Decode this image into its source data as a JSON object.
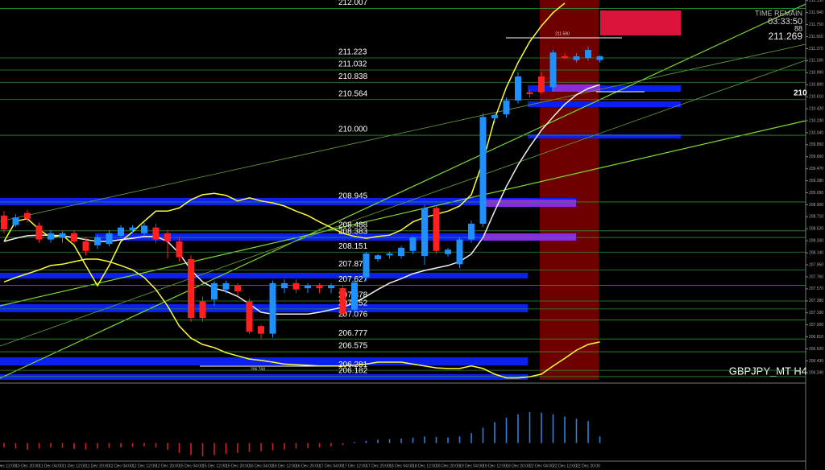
{
  "chart_data": {
    "type": "candlestick",
    "symbol": "GBPJPY_MT H4",
    "info": [
      "TIME REMAIN",
      "03:33:50",
      "88",
      "211.269"
    ],
    "annotations": [
      "211.590",
      "206.768",
      "210"
    ],
    "up_color": "#1e90ff",
    "down_color": "#ff2020",
    "ylim": [
      206.13,
      212.14
    ],
    "yticks": [
      {
        "value": 212.13,
        "label": "212.130"
      },
      {
        "value": 211.94,
        "label": "211.940"
      },
      {
        "value": 211.75,
        "label": "211.750"
      },
      {
        "value": 211.56,
        "label": "211.560"
      },
      {
        "value": 211.37,
        "label": "211.370"
      },
      {
        "value": 211.18,
        "label": "211.180"
      },
      {
        "value": 210.99,
        "label": "210.990"
      },
      {
        "value": 210.8,
        "label": "210.800"
      },
      {
        "value": 210.61,
        "label": "210.610"
      },
      {
        "value": 210.42,
        "label": "210.420"
      },
      {
        "value": 210.23,
        "label": "210.230"
      },
      {
        "value": 210.04,
        "label": "210.040"
      },
      {
        "value": 209.85,
        "label": "209.850"
      },
      {
        "value": 209.66,
        "label": "209.660"
      },
      {
        "value": 209.47,
        "label": "209.470"
      },
      {
        "value": 209.28,
        "label": "209.280"
      },
      {
        "value": 209.09,
        "label": "209.090"
      },
      {
        "value": 208.9,
        "label": "208.900"
      },
      {
        "value": 208.71,
        "label": "208.710"
      },
      {
        "value": 208.52,
        "label": "208.520"
      },
      {
        "value": 208.33,
        "label": "208.330"
      },
      {
        "value": 208.14,
        "label": "208.140"
      },
      {
        "value": 207.95,
        "label": "207.950"
      },
      {
        "value": 207.76,
        "label": "207.760"
      },
      {
        "value": 207.57,
        "label": "207.570"
      },
      {
        "value": 207.38,
        "label": "207.380"
      },
      {
        "value": 207.19,
        "label": "207.190"
      },
      {
        "value": 207.0,
        "label": "207.000"
      },
      {
        "value": 206.81,
        "label": "206.810"
      },
      {
        "value": 206.62,
        "label": "206.620"
      },
      {
        "value": 206.43,
        "label": "206.430"
      },
      {
        "value": 206.24,
        "label": "206.240"
      }
    ],
    "levels": [
      212.007,
      211.223,
      211.032,
      210.838,
      210.564,
      {
        "value": 210,
        "label": "210.000"
      },
      208.945,
      208.488,
      208.383,
      208.151,
      {
        "value": 207.87,
        "label": "207.870"
      },
      207.627,
      207.378,
      207.252,
      207.076,
      206.777,
      206.575,
      206.281,
      206.182
    ],
    "level_color": "#2f8f2f",
    "categories": [
      "10 Dec 12:00",
      null,
      "10 Dec 20:00",
      null,
      "11 Dec 04:00",
      null,
      "11 Dec 12:00",
      null,
      "11 Dec 20:00",
      null,
      "12 Dec 04:00",
      null,
      "12 Dec 12:00",
      null,
      "12 Dec 20:00",
      null,
      "15 Dec 04:00",
      null,
      "15 Dec 12:00",
      null,
      "15 Dec 20:00",
      null,
      "16 Dec 04:00",
      null,
      "16 Dec 12:00",
      null,
      "16 Dec 20:00",
      null,
      "17 Dec 04:00",
      null,
      "17 Dec 12:00",
      null,
      "17 Dec 20:00",
      null,
      "18 Dec 04:00",
      null,
      "18 Dec 12:00",
      null,
      "18 Dec 20:00",
      null,
      "19 Dec 04:00",
      null,
      "19 Dec 12:00",
      null,
      "19 Dec 20:00",
      null,
      "22 Dec 04:00",
      null,
      "22 Dec 12:00",
      null,
      "22 Dec 20:00",
      null
    ],
    "open": [
      208.73,
      208.58,
      208.77,
      208.57,
      208.35,
      208.38,
      208.45,
      208.32,
      208.26,
      208.28,
      208.41,
      208.5,
      208.45,
      208.54,
      208.45,
      208.32,
      208.04,
      207.37,
      207.4,
      207.56,
      207.62,
      207.37,
      206.98,
      206.86,
      207.58,
      207.66,
      207.58,
      207.62,
      207.58,
      207.58,
      207.24,
      207.75,
      208.04,
      208.1,
      208.09,
      208.17,
      208.09,
      208.85,
      208.12,
      207.96,
      208.35,
      208.6,
      210.27,
      210.33,
      210.55,
      210.68,
      210.93,
      210.76,
      211.25,
      211.19,
      211.22,
      211.19
    ],
    "high": [
      208.8,
      208.75,
      208.82,
      208.62,
      208.5,
      208.48,
      208.5,
      208.38,
      208.42,
      208.5,
      208.58,
      208.58,
      208.62,
      208.6,
      208.5,
      208.38,
      208.1,
      207.45,
      207.7,
      207.7,
      207.66,
      207.42,
      207.0,
      207.7,
      207.72,
      207.72,
      207.66,
      207.66,
      207.66,
      207.62,
      207.7,
      208.15,
      208.12,
      208.16,
      208.25,
      208.4,
      208.9,
      208.9,
      208.22,
      208.38,
      208.65,
      210.35,
      210.34,
      210.6,
      211.0,
      210.72,
      211.0,
      211.35,
      211.3,
      211.3,
      211.4,
      211.27
    ],
    "low": [
      208.45,
      208.55,
      208.62,
      208.3,
      208.3,
      208.3,
      208.28,
      208.1,
      208.2,
      208.24,
      208.38,
      208.45,
      208.42,
      208.3,
      208.05,
      208.0,
      207.05,
      207.05,
      207.3,
      207.5,
      207.45,
      206.86,
      206.78,
      206.8,
      207.5,
      207.5,
      207.5,
      207.5,
      207.5,
      207.12,
      207.15,
      207.7,
      208.0,
      208.05,
      208.05,
      208.12,
      207.95,
      208.12,
      208.08,
      207.9,
      208.3,
      208.55,
      210.2,
      210.28,
      210.5,
      210.6,
      210.65,
      210.7,
      211.2,
      211.15,
      211.18,
      211.15
    ],
    "close": [
      208.51,
      208.7,
      208.68,
      208.35,
      208.45,
      208.45,
      208.32,
      208.17,
      208.38,
      208.45,
      208.54,
      208.54,
      208.57,
      208.35,
      208.32,
      208.07,
      207.11,
      207.11,
      207.66,
      207.66,
      207.53,
      206.89,
      206.86,
      207.66,
      207.66,
      207.56,
      207.62,
      207.58,
      207.62,
      207.17,
      207.67,
      208.13,
      208.1,
      208.13,
      208.22,
      208.38,
      208.85,
      208.17,
      208.19,
      208.35,
      208.6,
      210.29,
      210.32,
      210.55,
      210.93,
      210.65,
      210.68,
      211.31,
      211.22,
      211.25,
      211.35,
      211.25
    ],
    "overlays": [
      {
        "color": "#ffff33",
        "values": [
          208.32,
          208.64,
          208.68,
          208.51,
          208.38,
          208.42,
          208.26,
          207.94,
          207.62,
          207.94,
          208.32,
          208.47,
          208.64,
          208.8,
          208.8,
          208.85,
          208.98,
          209.06,
          209.08,
          209.05,
          208.96,
          209.01,
          208.96,
          208.93,
          208.88,
          208.8,
          208.73,
          208.63,
          208.54,
          208.45,
          208.4,
          208.37,
          208.4,
          208.42,
          208.5,
          208.63,
          208.7,
          208.75,
          208.8,
          208.88,
          209.06,
          209.59,
          210.26,
          210.76,
          211.15,
          211.48,
          211.73,
          211.94,
          212.09,
          null,
          null,
          null
        ]
      },
      {
        "color": "#ffff33",
        "values": [
          207.68,
          207.75,
          207.81,
          207.87,
          207.94,
          207.96,
          208.0,
          208.04,
          208.04,
          208.0,
          207.94,
          207.87,
          207.75,
          207.56,
          207.3,
          206.98,
          206.79,
          206.69,
          206.64,
          206.56,
          206.51,
          206.46,
          206.44,
          206.41,
          206.38,
          206.37,
          206.36,
          206.35,
          206.35,
          206.35,
          206.36,
          206.38,
          206.41,
          206.41,
          206.41,
          206.38,
          206.35,
          206.32,
          206.31,
          206.31,
          206.35,
          206.31,
          206.22,
          206.16,
          206.16,
          206.18,
          206.22,
          206.35,
          206.47,
          206.6,
          206.69,
          206.73
        ]
      },
      {
        "color": "#f0f0f0",
        "values": [
          208.32,
          208.37,
          208.41,
          208.42,
          208.42,
          208.41,
          208.38,
          208.35,
          208.32,
          208.32,
          208.35,
          208.37,
          208.4,
          208.4,
          208.32,
          208.13,
          207.87,
          207.68,
          207.58,
          207.53,
          207.45,
          207.33,
          207.2,
          207.17,
          207.17,
          207.17,
          207.17,
          207.2,
          207.24,
          207.28,
          207.35,
          207.45,
          207.56,
          207.66,
          207.73,
          207.81,
          207.86,
          207.9,
          207.94,
          208.0,
          208.12,
          208.38,
          208.8,
          209.19,
          209.53,
          209.82,
          210.08,
          210.29,
          210.49,
          210.64,
          210.74,
          210.8
        ]
      }
    ],
    "indicator": {
      "ylim": [
        -30,
        100
      ],
      "up_color": "#2f7fd8",
      "down_color": "#d22020",
      "values": [
        -8,
        -10,
        -12,
        -10,
        -8,
        -9,
        -11,
        -12,
        -10,
        -9,
        -8,
        -7,
        -6,
        -8,
        -12,
        -18,
        -22,
        -24,
        -22,
        -20,
        -18,
        -16,
        -15,
        -13,
        -12,
        -10,
        -9,
        -8,
        -6,
        -4,
        2,
        4,
        6,
        7,
        8,
        10,
        12,
        11,
        10,
        12,
        18,
        28,
        38,
        46,
        52,
        56,
        55,
        52,
        48,
        44,
        40,
        12
      ]
    }
  }
}
